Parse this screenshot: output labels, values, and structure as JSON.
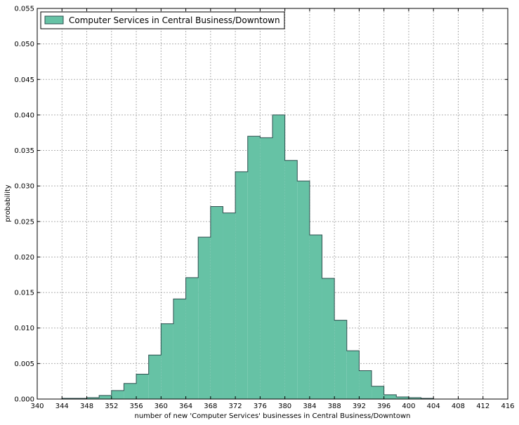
{
  "chart_data": {
    "type": "bar",
    "histogram": true,
    "bin_width": 2,
    "bins": [
      {
        "x0": 344,
        "x1": 346,
        "value": 0.0001
      },
      {
        "x0": 346,
        "x1": 348,
        "value": 0.0001
      },
      {
        "x0": 348,
        "x1": 350,
        "value": 0.0002
      },
      {
        "x0": 350,
        "x1": 352,
        "value": 0.0005
      },
      {
        "x0": 352,
        "x1": 354,
        "value": 0.0012
      },
      {
        "x0": 354,
        "x1": 356,
        "value": 0.0022
      },
      {
        "x0": 356,
        "x1": 358,
        "value": 0.0035
      },
      {
        "x0": 358,
        "x1": 360,
        "value": 0.0062
      },
      {
        "x0": 360,
        "x1": 362,
        "value": 0.0106
      },
      {
        "x0": 362,
        "x1": 364,
        "value": 0.0141
      },
      {
        "x0": 364,
        "x1": 366,
        "value": 0.0171
      },
      {
        "x0": 366,
        "x1": 368,
        "value": 0.0228
      },
      {
        "x0": 368,
        "x1": 370,
        "value": 0.0271
      },
      {
        "x0": 370,
        "x1": 372,
        "value": 0.0262
      },
      {
        "x0": 372,
        "x1": 374,
        "value": 0.032
      },
      {
        "x0": 374,
        "x1": 376,
        "value": 0.037
      },
      {
        "x0": 376,
        "x1": 378,
        "value": 0.0368
      },
      {
        "x0": 378,
        "x1": 380,
        "value": 0.04
      },
      {
        "x0": 380,
        "x1": 382,
        "value": 0.0336
      },
      {
        "x0": 382,
        "x1": 384,
        "value": 0.0307
      },
      {
        "x0": 384,
        "x1": 386,
        "value": 0.0231
      },
      {
        "x0": 386,
        "x1": 388,
        "value": 0.017
      },
      {
        "x0": 388,
        "x1": 390,
        "value": 0.0111
      },
      {
        "x0": 390,
        "x1": 392,
        "value": 0.0068
      },
      {
        "x0": 392,
        "x1": 394,
        "value": 0.004
      },
      {
        "x0": 394,
        "x1": 396,
        "value": 0.0018
      },
      {
        "x0": 396,
        "x1": 398,
        "value": 0.0006
      },
      {
        "x0": 398,
        "x1": 400,
        "value": 0.0003
      },
      {
        "x0": 400,
        "x1": 402,
        "value": 0.0002
      },
      {
        "x0": 402,
        "x1": 404,
        "value": 0.0001
      }
    ],
    "xlabel": "number of new 'Computer Services' businesses in Central Business/Downtown",
    "ylabel": "probability",
    "xlim": [
      340,
      416
    ],
    "ylim": [
      0,
      0.055
    ],
    "x_ticks": [
      "340",
      "344",
      "348",
      "352",
      "356",
      "360",
      "364",
      "368",
      "372",
      "376",
      "380",
      "384",
      "388",
      "392",
      "396",
      "400",
      "404",
      "408",
      "412",
      "416"
    ],
    "y_ticks": [
      "0.000",
      "0.005",
      "0.010",
      "0.015",
      "0.020",
      "0.025",
      "0.030",
      "0.035",
      "0.040",
      "0.045",
      "0.050",
      "0.055"
    ],
    "series": [
      {
        "name": "Computer Services in Central Business/Downtown",
        "color": "#66c2a5"
      }
    ],
    "grid": true,
    "legend_position": "top-left",
    "colors": {
      "bar_fill": "#66c2a5",
      "bar_edge": "#2f4f4f",
      "grid": "#b0b0b0"
    }
  }
}
